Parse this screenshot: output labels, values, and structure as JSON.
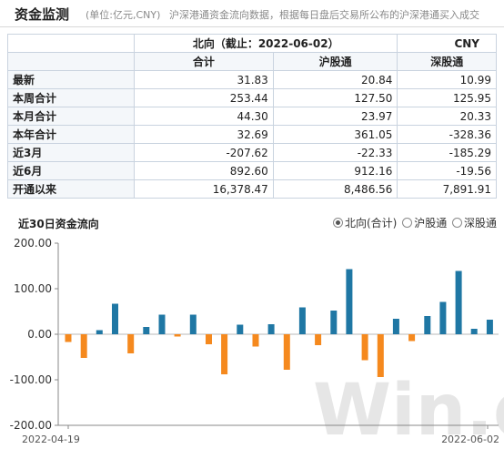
{
  "header": {
    "title": "资金监测",
    "unit": "(单位:亿元,CNY)",
    "description": "沪深港通资金流向数据，根据每日盘后交易所公布的沪深港通买入成交"
  },
  "table": {
    "direction_header": "北向（截止：2022-06-02）",
    "currency": "CNY",
    "columns": [
      "合计",
      "沪股通",
      "深股通"
    ],
    "rows": [
      {
        "label": "最新",
        "values": [
          "31.83",
          "20.84",
          "10.99"
        ]
      },
      {
        "label": "本周合计",
        "values": [
          "253.44",
          "127.50",
          "125.95"
        ]
      },
      {
        "label": "本月合计",
        "values": [
          "44.30",
          "23.97",
          "20.33"
        ]
      },
      {
        "label": "本年合计",
        "values": [
          "32.69",
          "361.05",
          "-328.36"
        ]
      },
      {
        "label": "近3月",
        "values": [
          "-207.62",
          "-22.33",
          "-185.29"
        ]
      },
      {
        "label": "近6月",
        "values": [
          "892.60",
          "912.16",
          "-19.56"
        ]
      },
      {
        "label": "开通以来",
        "values": [
          "16,378.47",
          "8,486.56",
          "7,891.91"
        ]
      }
    ]
  },
  "chart_controls": {
    "title": "近30日资金流向",
    "options": [
      "北向(合计)",
      "沪股通",
      "深股通"
    ],
    "selected": 0
  },
  "watermark": "Win.d",
  "colors": {
    "positive": "#1f77a4",
    "negative": "#f5891e"
  },
  "chart_data": {
    "type": "bar",
    "title": "近30日资金流向",
    "x_start_label": "2022-04-19",
    "x_end_label": "2022-06-02",
    "ylim": [
      -200,
      200
    ],
    "yticks": [
      "200.00",
      "100.00",
      "0.00",
      "-100.00",
      "-200.00"
    ],
    "grid": false,
    "legend": "none",
    "values": [
      -17,
      -52,
      9,
      67,
      -42,
      16,
      43,
      -5,
      43,
      -22,
      -88,
      21,
      -27,
      22,
      -78,
      59,
      -24,
      52,
      143,
      -57,
      -94,
      34,
      -15,
      40,
      71,
      139,
      12,
      32
    ]
  }
}
